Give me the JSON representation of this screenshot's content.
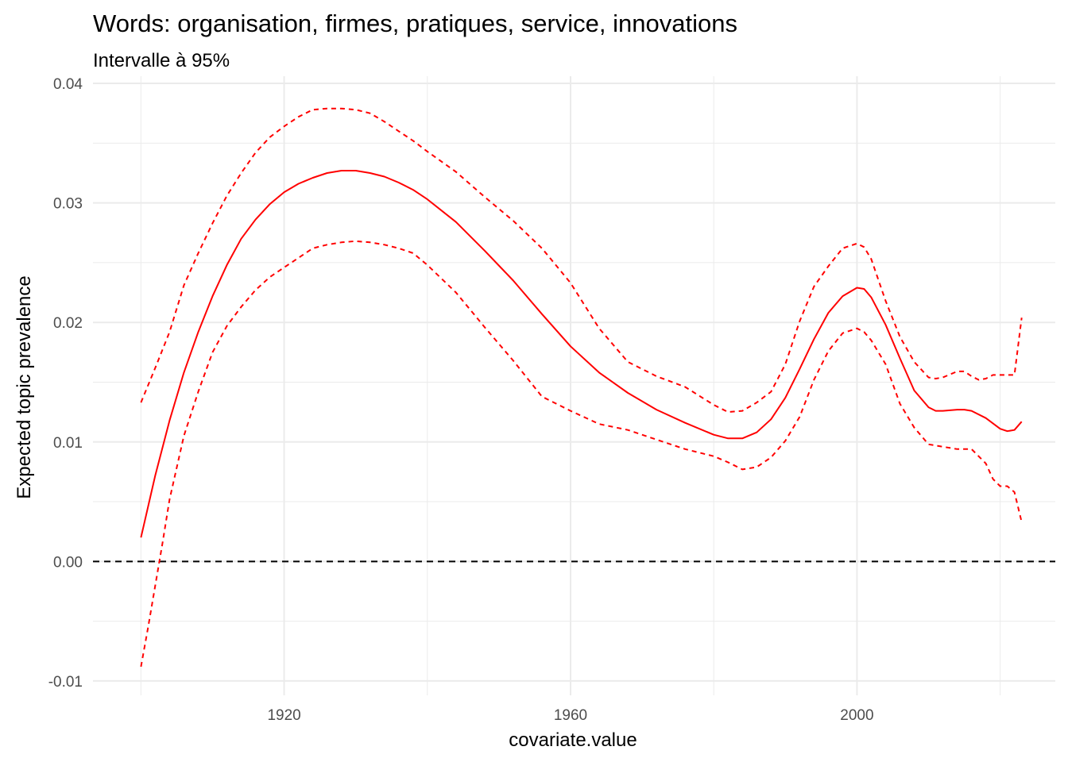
{
  "chart_data": {
    "type": "line",
    "title": "Words: organisation, firmes, pratiques, service, innovations",
    "subtitle": "Intervalle à 95%",
    "xlabel": "covariate.value",
    "ylabel": "Expected topic prevalence",
    "xlim": [
      1893.3,
      2027.7
    ],
    "ylim": [
      -0.0112,
      0.0406
    ],
    "x_ticks": [
      1920,
      1960,
      2000
    ],
    "x_tick_labels": [
      "1920",
      "1960",
      "2000"
    ],
    "y_ticks": [
      -0.01,
      0.0,
      0.01,
      0.02,
      0.03,
      0.04
    ],
    "y_tick_labels": [
      "-0.01",
      "0.00",
      "0.01",
      "0.02",
      "0.03",
      "0.04"
    ],
    "grid": true,
    "reference_line": {
      "y": 0.0,
      "style": "dashed",
      "color": "#000000"
    },
    "colors": {
      "series": "#ff0000",
      "grid": "#ebebeb",
      "reference": "#000000"
    },
    "series": [
      {
        "role": "estimate",
        "style": "solid",
        "x": [
          1900,
          1902,
          1904,
          1906,
          1908,
          1910,
          1912,
          1914,
          1916,
          1918,
          1920,
          1922,
          1924,
          1926,
          1928,
          1930,
          1932,
          1934,
          1936,
          1938,
          1940,
          1944,
          1948,
          1952,
          1956,
          1960,
          1964,
          1968,
          1972,
          1976,
          1980,
          1982,
          1984,
          1986,
          1988,
          1990,
          1992,
          1994,
          1996,
          1998,
          2000,
          2001,
          2002,
          2004,
          2006,
          2008,
          2010,
          2011,
          2012,
          2014,
          2015,
          2016,
          2018,
          2020,
          2021,
          2022,
          2023
        ],
        "y": [
          0.002,
          0.0072,
          0.0118,
          0.0158,
          0.0192,
          0.0222,
          0.0248,
          0.027,
          0.0286,
          0.0299,
          0.0309,
          0.0316,
          0.0321,
          0.0325,
          0.0327,
          0.0327,
          0.0325,
          0.0322,
          0.0317,
          0.0311,
          0.0303,
          0.0284,
          0.026,
          0.0235,
          0.0207,
          0.018,
          0.0158,
          0.0141,
          0.0127,
          0.0116,
          0.0106,
          0.0103,
          0.0103,
          0.0108,
          0.0119,
          0.0137,
          0.0161,
          0.0186,
          0.0208,
          0.0222,
          0.0229,
          0.0228,
          0.0221,
          0.0198,
          0.017,
          0.0143,
          0.0129,
          0.0126,
          0.0126,
          0.0127,
          0.0127,
          0.0126,
          0.012,
          0.0111,
          0.0109,
          0.011,
          0.0117
        ]
      },
      {
        "role": "upper-95",
        "style": "dashed",
        "x": [
          1900,
          1902,
          1904,
          1906,
          1908,
          1910,
          1912,
          1914,
          1916,
          1918,
          1920,
          1922,
          1924,
          1926,
          1928,
          1930,
          1932,
          1934,
          1936,
          1938,
          1940,
          1944,
          1948,
          1952,
          1956,
          1960,
          1964,
          1968,
          1972,
          1976,
          1980,
          1982,
          1984,
          1986,
          1988,
          1990,
          1992,
          1994,
          1996,
          1998,
          2000,
          2001,
          2002,
          2004,
          2006,
          2008,
          2010,
          2011,
          2012,
          2014,
          2015,
          2016,
          2017,
          2018,
          2019,
          2020,
          2021,
          2022,
          2023
        ],
        "y": [
          0.0133,
          0.0162,
          0.0192,
          0.0231,
          0.0258,
          0.0283,
          0.0306,
          0.0325,
          0.0342,
          0.0355,
          0.0364,
          0.0372,
          0.0378,
          0.0379,
          0.0379,
          0.0378,
          0.0375,
          0.0368,
          0.036,
          0.0352,
          0.0343,
          0.0326,
          0.0305,
          0.0285,
          0.0262,
          0.0233,
          0.0195,
          0.0167,
          0.0155,
          0.0146,
          0.0131,
          0.0125,
          0.0126,
          0.0133,
          0.0142,
          0.0165,
          0.0201,
          0.023,
          0.0247,
          0.0262,
          0.0266,
          0.0263,
          0.0253,
          0.0218,
          0.0188,
          0.0167,
          0.0154,
          0.0153,
          0.0154,
          0.0159,
          0.0159,
          0.0155,
          0.0152,
          0.0153,
          0.0156,
          0.0156,
          0.0156,
          0.0156,
          0.0204
        ]
      },
      {
        "role": "lower-95",
        "style": "dashed",
        "x": [
          1900,
          1901,
          1902,
          1903,
          1904,
          1906,
          1908,
          1910,
          1912,
          1914,
          1916,
          1918,
          1920,
          1922,
          1924,
          1926,
          1928,
          1930,
          1932,
          1934,
          1936,
          1938,
          1940,
          1944,
          1948,
          1952,
          1956,
          1960,
          1964,
          1968,
          1972,
          1976,
          1980,
          1982,
          1984,
          1986,
          1988,
          1990,
          1992,
          1994,
          1996,
          1998,
          2000,
          2001,
          2002,
          2004,
          2006,
          2008,
          2010,
          2012,
          2014,
          2016,
          2018,
          2019,
          2020,
          2021,
          2022,
          2023
        ],
        "y": [
          -0.0088,
          -0.0055,
          -0.002,
          0.0015,
          0.0052,
          0.0105,
          0.0142,
          0.0175,
          0.0197,
          0.0213,
          0.0227,
          0.0238,
          0.0246,
          0.0254,
          0.0262,
          0.0265,
          0.0267,
          0.0268,
          0.0267,
          0.0265,
          0.0262,
          0.0258,
          0.0248,
          0.0225,
          0.0196,
          0.0168,
          0.0138,
          0.0126,
          0.0115,
          0.011,
          0.0102,
          0.0094,
          0.0088,
          0.0083,
          0.0077,
          0.0079,
          0.0087,
          0.0101,
          0.0121,
          0.0152,
          0.0176,
          0.0191,
          0.0195,
          0.0192,
          0.0185,
          0.0165,
          0.0132,
          0.0112,
          0.0098,
          0.0096,
          0.0094,
          0.0094,
          0.0082,
          0.0069,
          0.0063,
          0.0063,
          0.0058,
          0.0033
        ]
      }
    ]
  }
}
